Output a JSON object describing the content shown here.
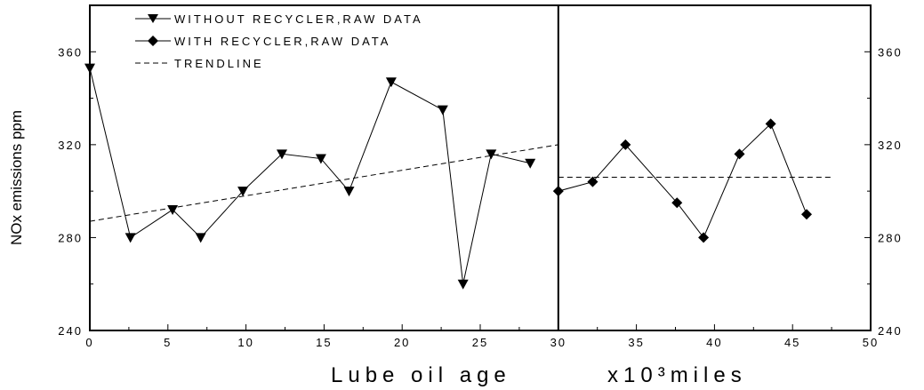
{
  "chart_data": {
    "type": "line",
    "x_ticks": [
      "0",
      "5",
      "10",
      "15",
      "20",
      "25",
      "30",
      "35",
      "40",
      "45",
      "50"
    ],
    "y_ticks": [
      "240",
      "280",
      "320",
      "360"
    ],
    "xlim": [
      0,
      50
    ],
    "ylim": [
      240,
      380
    ],
    "ylabel": "NOx emissions  ppm",
    "xlabel_left": "Lube oil age",
    "xlabel_right": "x10³miles",
    "panel_divider_x": 30,
    "legend": {
      "without": "WITHOUT RECYCLER,RAW DATA",
      "with": "WITH RECYCLER,RAW DATA",
      "trend": "TRENDLINE"
    },
    "series": [
      {
        "name": "WITHOUT RECYCLER,RAW DATA",
        "marker": "triangle-down",
        "x": [
          0,
          2.6,
          5.3,
          7.1,
          9.8,
          12.3,
          14.8,
          16.6,
          19.3,
          22.6,
          23.9,
          25.7,
          28.2
        ],
        "y": [
          353,
          280,
          292,
          280,
          300,
          316,
          314,
          300,
          347,
          335,
          260,
          316,
          312
        ]
      },
      {
        "name": "WITH RECYCLER,RAW DATA",
        "marker": "diamond",
        "x": [
          30,
          32.2,
          34.3,
          37.6,
          39.3,
          41.6,
          43.6,
          45.9
        ],
        "y": [
          300,
          304,
          320,
          295,
          280,
          316,
          329,
          290
        ]
      },
      {
        "name": "TRENDLINE",
        "style": "dashed",
        "segments": [
          {
            "x": [
              0,
              30
            ],
            "y": [
              287,
              320
            ]
          },
          {
            "x": [
              30,
              47.5
            ],
            "y": [
              306,
              306
            ]
          }
        ]
      }
    ]
  }
}
